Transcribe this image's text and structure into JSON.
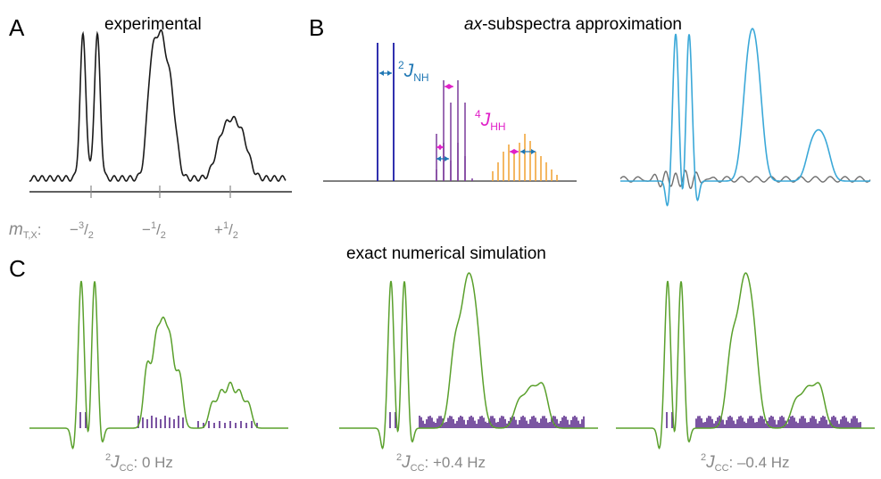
{
  "panels": {
    "A": {
      "letter": "A",
      "title": "experimental",
      "axis_label_main": "m",
      "axis_label_sub": "T,X",
      "axis_label_colon": ":",
      "ticks": [
        {
          "sign": "−",
          "num": "3",
          "den": "2"
        },
        {
          "sign": "−",
          "num": "1",
          "den": "2"
        },
        {
          "sign": "+",
          "num": "1",
          "den": "2"
        }
      ]
    },
    "B": {
      "letter": "B",
      "title_italic": "ax",
      "title_rest": "-subspectra approximation",
      "label_nh": {
        "sup": "2",
        "main": "J",
        "sub": "NH"
      },
      "label_hh": {
        "sup": "4",
        "main": "J",
        "sub": "HH"
      }
    },
    "C": {
      "letter": "C",
      "title": "exact numerical simulation",
      "captions": [
        {
          "sup": "2",
          "main": "J",
          "sub": "CC",
          "value": ": 0 Hz"
        },
        {
          "sup": "2",
          "main": "J",
          "sub": "CC",
          "value": ": +0.4 Hz"
        },
        {
          "sup": "2",
          "main": "J",
          "sub": "CC",
          "value": ": –0.4 Hz"
        }
      ]
    }
  },
  "colors": {
    "experimental": "#1a1a1a",
    "nh": "#1a1aa6",
    "nh_arrow": "#1f77b4",
    "hh": "#e020c8",
    "purple_lines": "#7a3a9a",
    "orange_lines": "#f0a030",
    "sim_blue": "#3ba8d8",
    "sim_gray": "#707070",
    "sim_green": "#5aa02c",
    "stick_purple": "#5a2a8a",
    "gray_text": "#888888"
  }
}
